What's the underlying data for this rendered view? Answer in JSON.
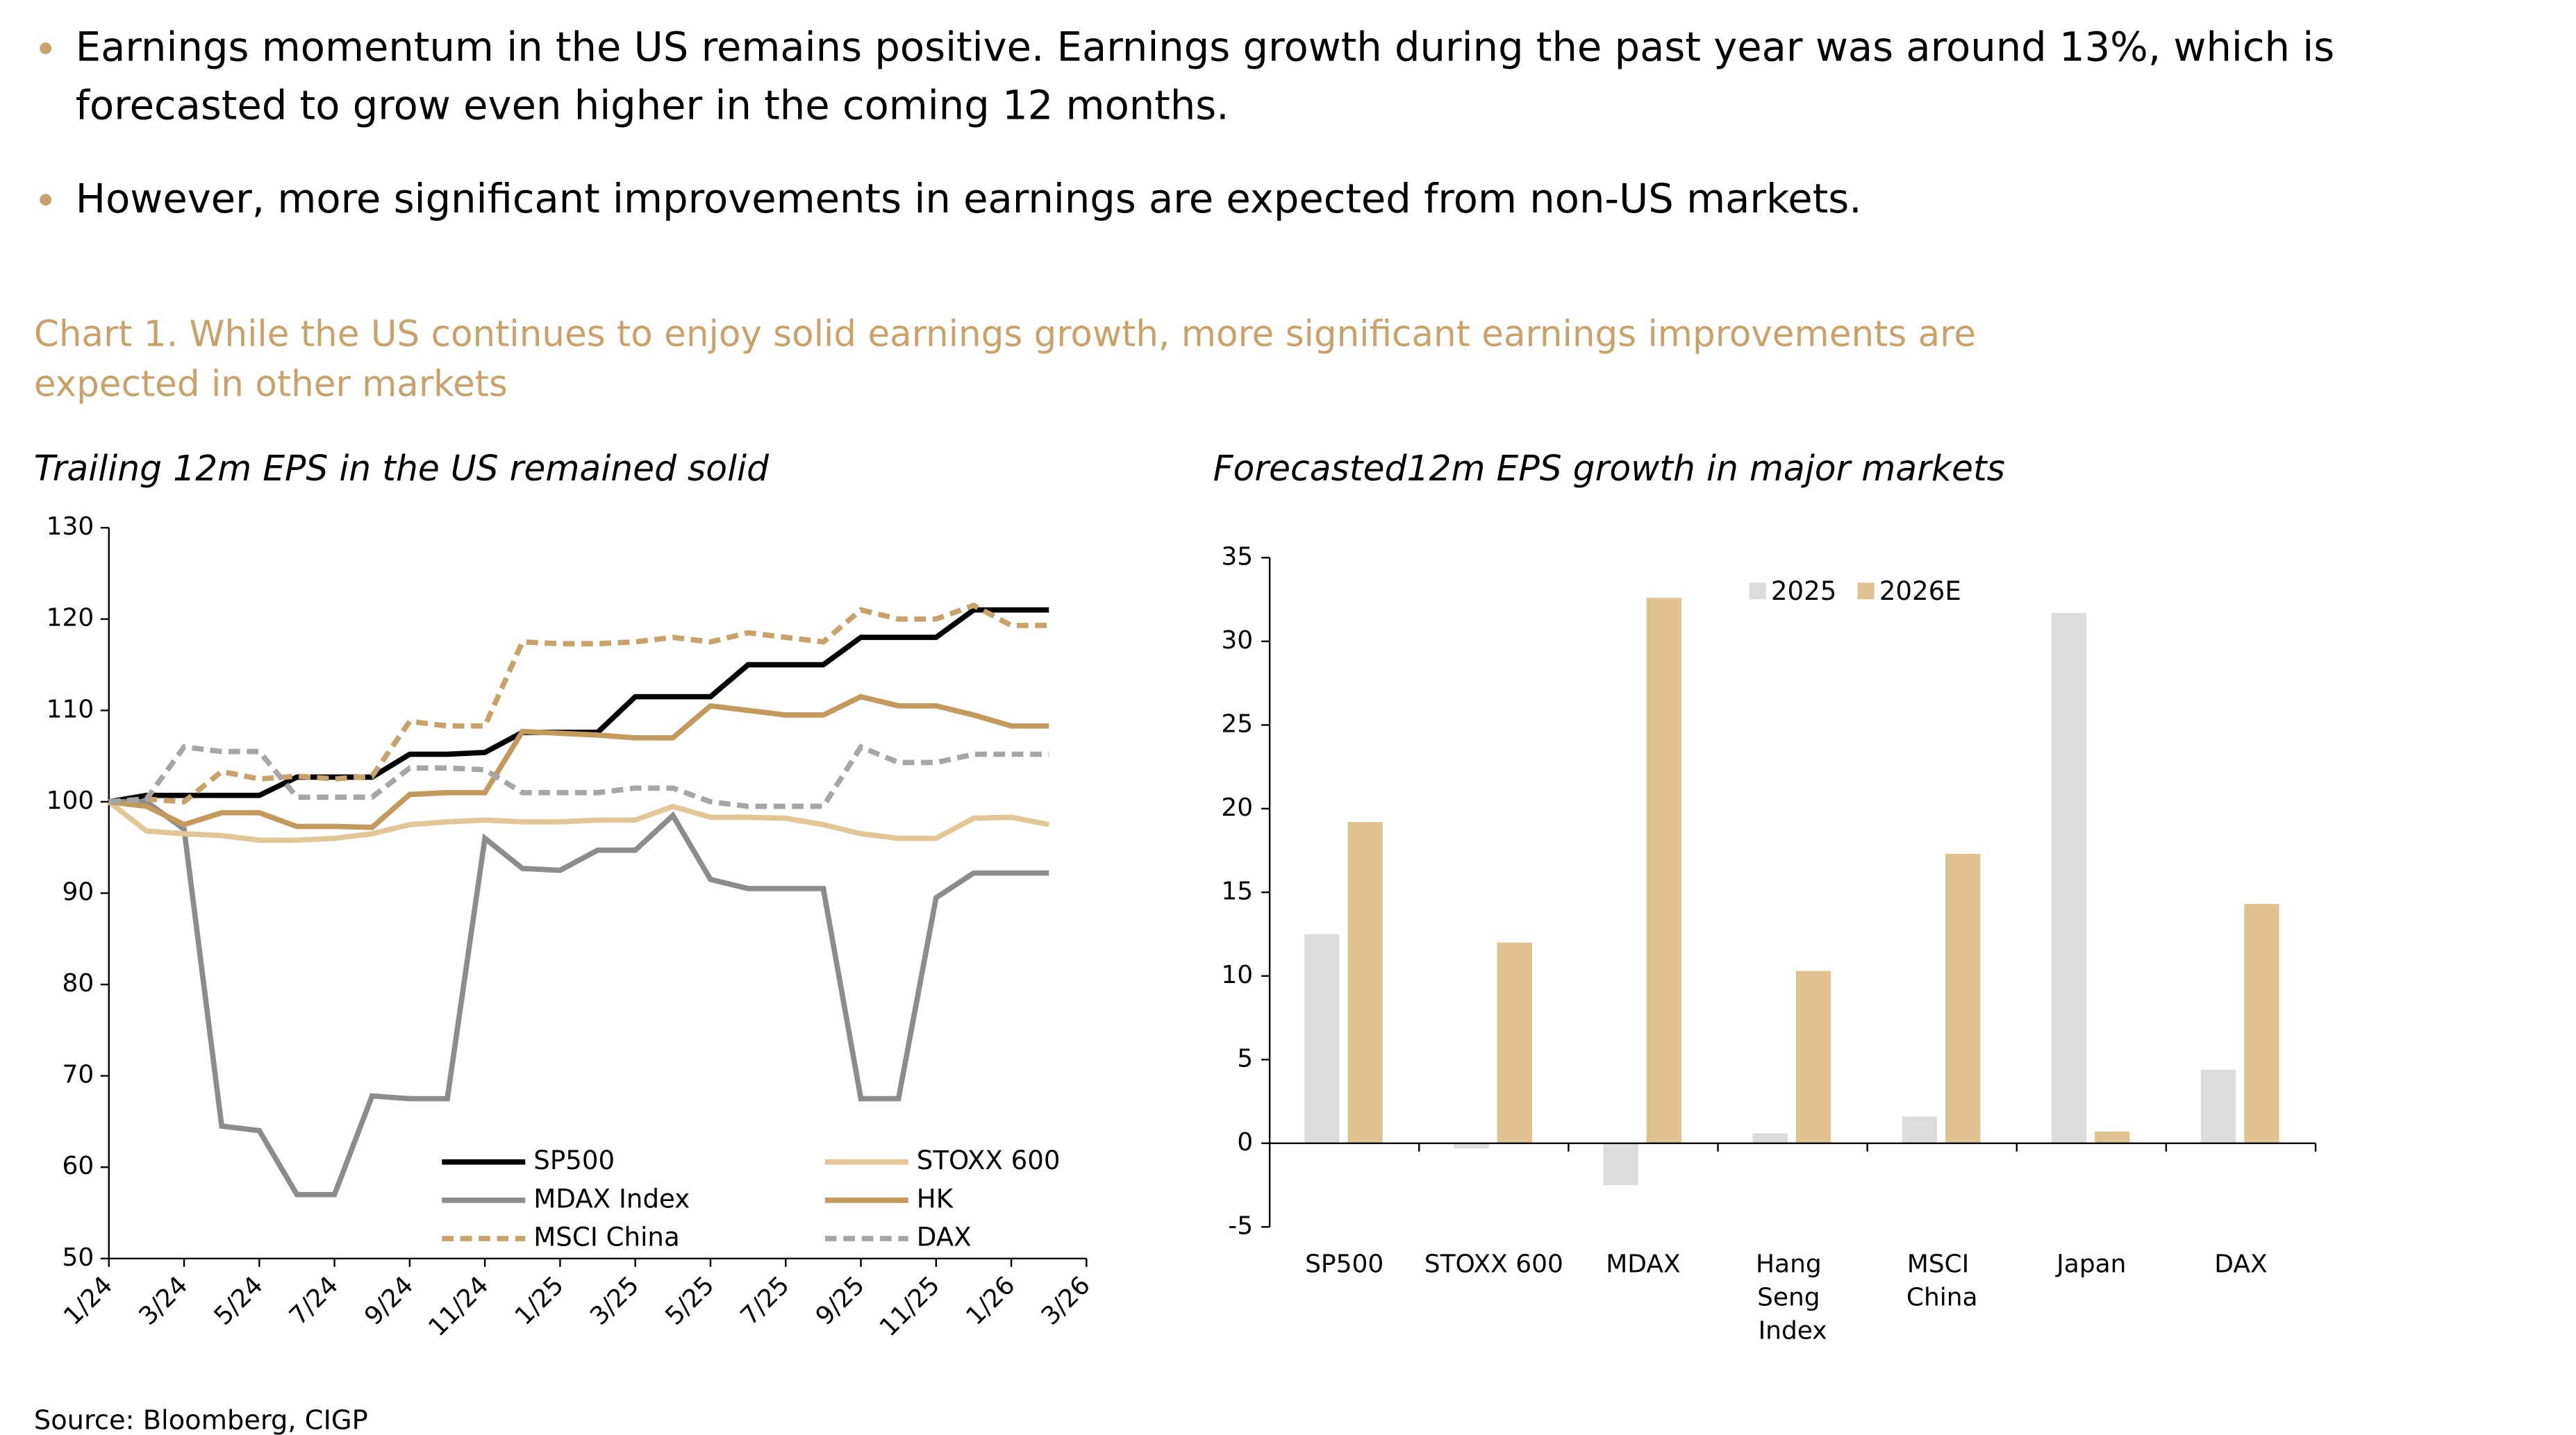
{
  "bullets": [
    [
      "Earnings momentum in the US remains positive. Earnings growth during the past year was around 13%, which is",
      "forecasted to grow even higher in the coming 12 months."
    ],
    [
      "However, more significant improvements in earnings are expected from non-US markets."
    ]
  ],
  "chart_heading": [
    "Chart 1. While the US continues to enjoy solid earnings growth, more significant earnings improvements are",
    "expected in other markets"
  ],
  "source": "Source: Bloomberg, CIGP",
  "chart_data": [
    {
      "type": "line",
      "title": "Trailing 12m EPS in the US remained solid",
      "x": [
        0,
        1,
        2,
        3,
        4,
        5,
        6,
        7,
        8,
        9,
        10,
        11,
        12,
        13,
        14,
        15,
        16,
        17,
        18,
        19,
        20,
        21,
        22,
        23,
        24,
        25,
        26
      ],
      "xlim": [
        0,
        26
      ],
      "xticks": [
        {
          "value": 0,
          "label": "1/24"
        },
        {
          "value": 2,
          "label": "3/24"
        },
        {
          "value": 4,
          "label": "5/24"
        },
        {
          "value": 6,
          "label": "7/24"
        },
        {
          "value": 8,
          "label": "9/24"
        },
        {
          "value": 10,
          "label": "11/24"
        },
        {
          "value": 12,
          "label": "1/25"
        },
        {
          "value": 14,
          "label": "3/25"
        },
        {
          "value": 16,
          "label": "5/25"
        },
        {
          "value": 18,
          "label": "7/25"
        },
        {
          "value": 20,
          "label": "9/25"
        },
        {
          "value": 22,
          "label": "11/25"
        },
        {
          "value": 24,
          "label": "1/26"
        },
        {
          "value": 26,
          "label": "3/26"
        }
      ],
      "ylim": [
        50,
        130
      ],
      "yticks": [
        50,
        60,
        70,
        80,
        90,
        100,
        110,
        120,
        130
      ],
      "series": [
        {
          "name": "SP500",
          "color": "#000000",
          "line_style": "solid",
          "values": [
            100,
            100.7,
            100.7,
            100.7,
            100.7,
            102.7,
            102.7,
            102.7,
            105.2,
            105.2,
            105.4,
            107.6,
            107.6,
            107.6,
            111.5,
            111.5,
            111.5,
            115,
            115,
            115,
            118,
            118,
            118,
            121,
            121,
            121,
            null
          ]
        },
        {
          "name": "MDAX Index",
          "color": "#8c8c8c",
          "line_style": "solid",
          "values": [
            100,
            100,
            97,
            64.5,
            64,
            57,
            57,
            67.8,
            67.5,
            67.5,
            96,
            92.7,
            92.5,
            94.7,
            94.7,
            98.5,
            91.5,
            90.5,
            90.5,
            90.5,
            67.5,
            67.5,
            89.5,
            92.2,
            92.2,
            92.2,
            null
          ]
        },
        {
          "name": "MSCI China",
          "color": "#c9a26a",
          "line_style": "dashed",
          "values": [
            100,
            100.3,
            100,
            103.3,
            102.5,
            102.8,
            102.5,
            102.8,
            108.8,
            108.3,
            108.3,
            117.5,
            117.3,
            117.3,
            117.5,
            118,
            117.5,
            118.5,
            118,
            117.5,
            121,
            120,
            120,
            121.5,
            119.3,
            119.3,
            null
          ]
        },
        {
          "name": "STOXX 600",
          "color": "#e2c796",
          "line_style": "solid",
          "values": [
            100,
            96.8,
            96.5,
            96.3,
            95.8,
            95.8,
            96,
            96.5,
            97.5,
            97.8,
            98,
            97.8,
            97.8,
            98,
            98,
            99.5,
            98.3,
            98.3,
            98.2,
            97.5,
            96.5,
            96,
            96,
            98.2,
            98.3,
            97.5,
            null
          ]
        },
        {
          "name": "HK",
          "color": "#c49a5c",
          "line_style": "solid",
          "values": [
            100,
            99.5,
            97.5,
            98.8,
            98.8,
            97.3,
            97.3,
            97.2,
            100.8,
            101,
            101,
            107.7,
            107.5,
            107.3,
            107,
            107,
            110.5,
            110,
            109.5,
            109.5,
            111.5,
            110.5,
            110.5,
            109.5,
            108.3,
            108.3,
            null
          ]
        },
        {
          "name": "DAX",
          "color": "#a6a6a6",
          "line_style": "dashed",
          "values": [
            100,
            100.3,
            106,
            105.5,
            105.5,
            100.5,
            100.5,
            100.5,
            103.7,
            103.7,
            103.5,
            101,
            101,
            101,
            101.5,
            101.5,
            100,
            99.5,
            99.5,
            99.5,
            106,
            104.3,
            104.3,
            105.2,
            105.2,
            105.2,
            null
          ]
        }
      ]
    },
    {
      "type": "bar",
      "title": "Forecasted12m EPS growth in major markets",
      "categories": [
        "SP500",
        "STOXX 600",
        "MDAX",
        "Hang Seng Index",
        "MSCI China",
        "Japan",
        "DAX"
      ],
      "ylim": [
        -5,
        35
      ],
      "yticks": [
        -5,
        0,
        5,
        10,
        15,
        20,
        25,
        30,
        35
      ],
      "series": [
        {
          "name": "2025",
          "color": "#dcdcdc",
          "values": [
            12.5,
            -0.3,
            -2.5,
            0.6,
            1.6,
            31.7,
            4.4
          ]
        },
        {
          "name": "2026E",
          "color": "#e0c290",
          "values": [
            19.2,
            12,
            32.6,
            10.3,
            17.3,
            0.7,
            14.3
          ]
        }
      ]
    }
  ]
}
